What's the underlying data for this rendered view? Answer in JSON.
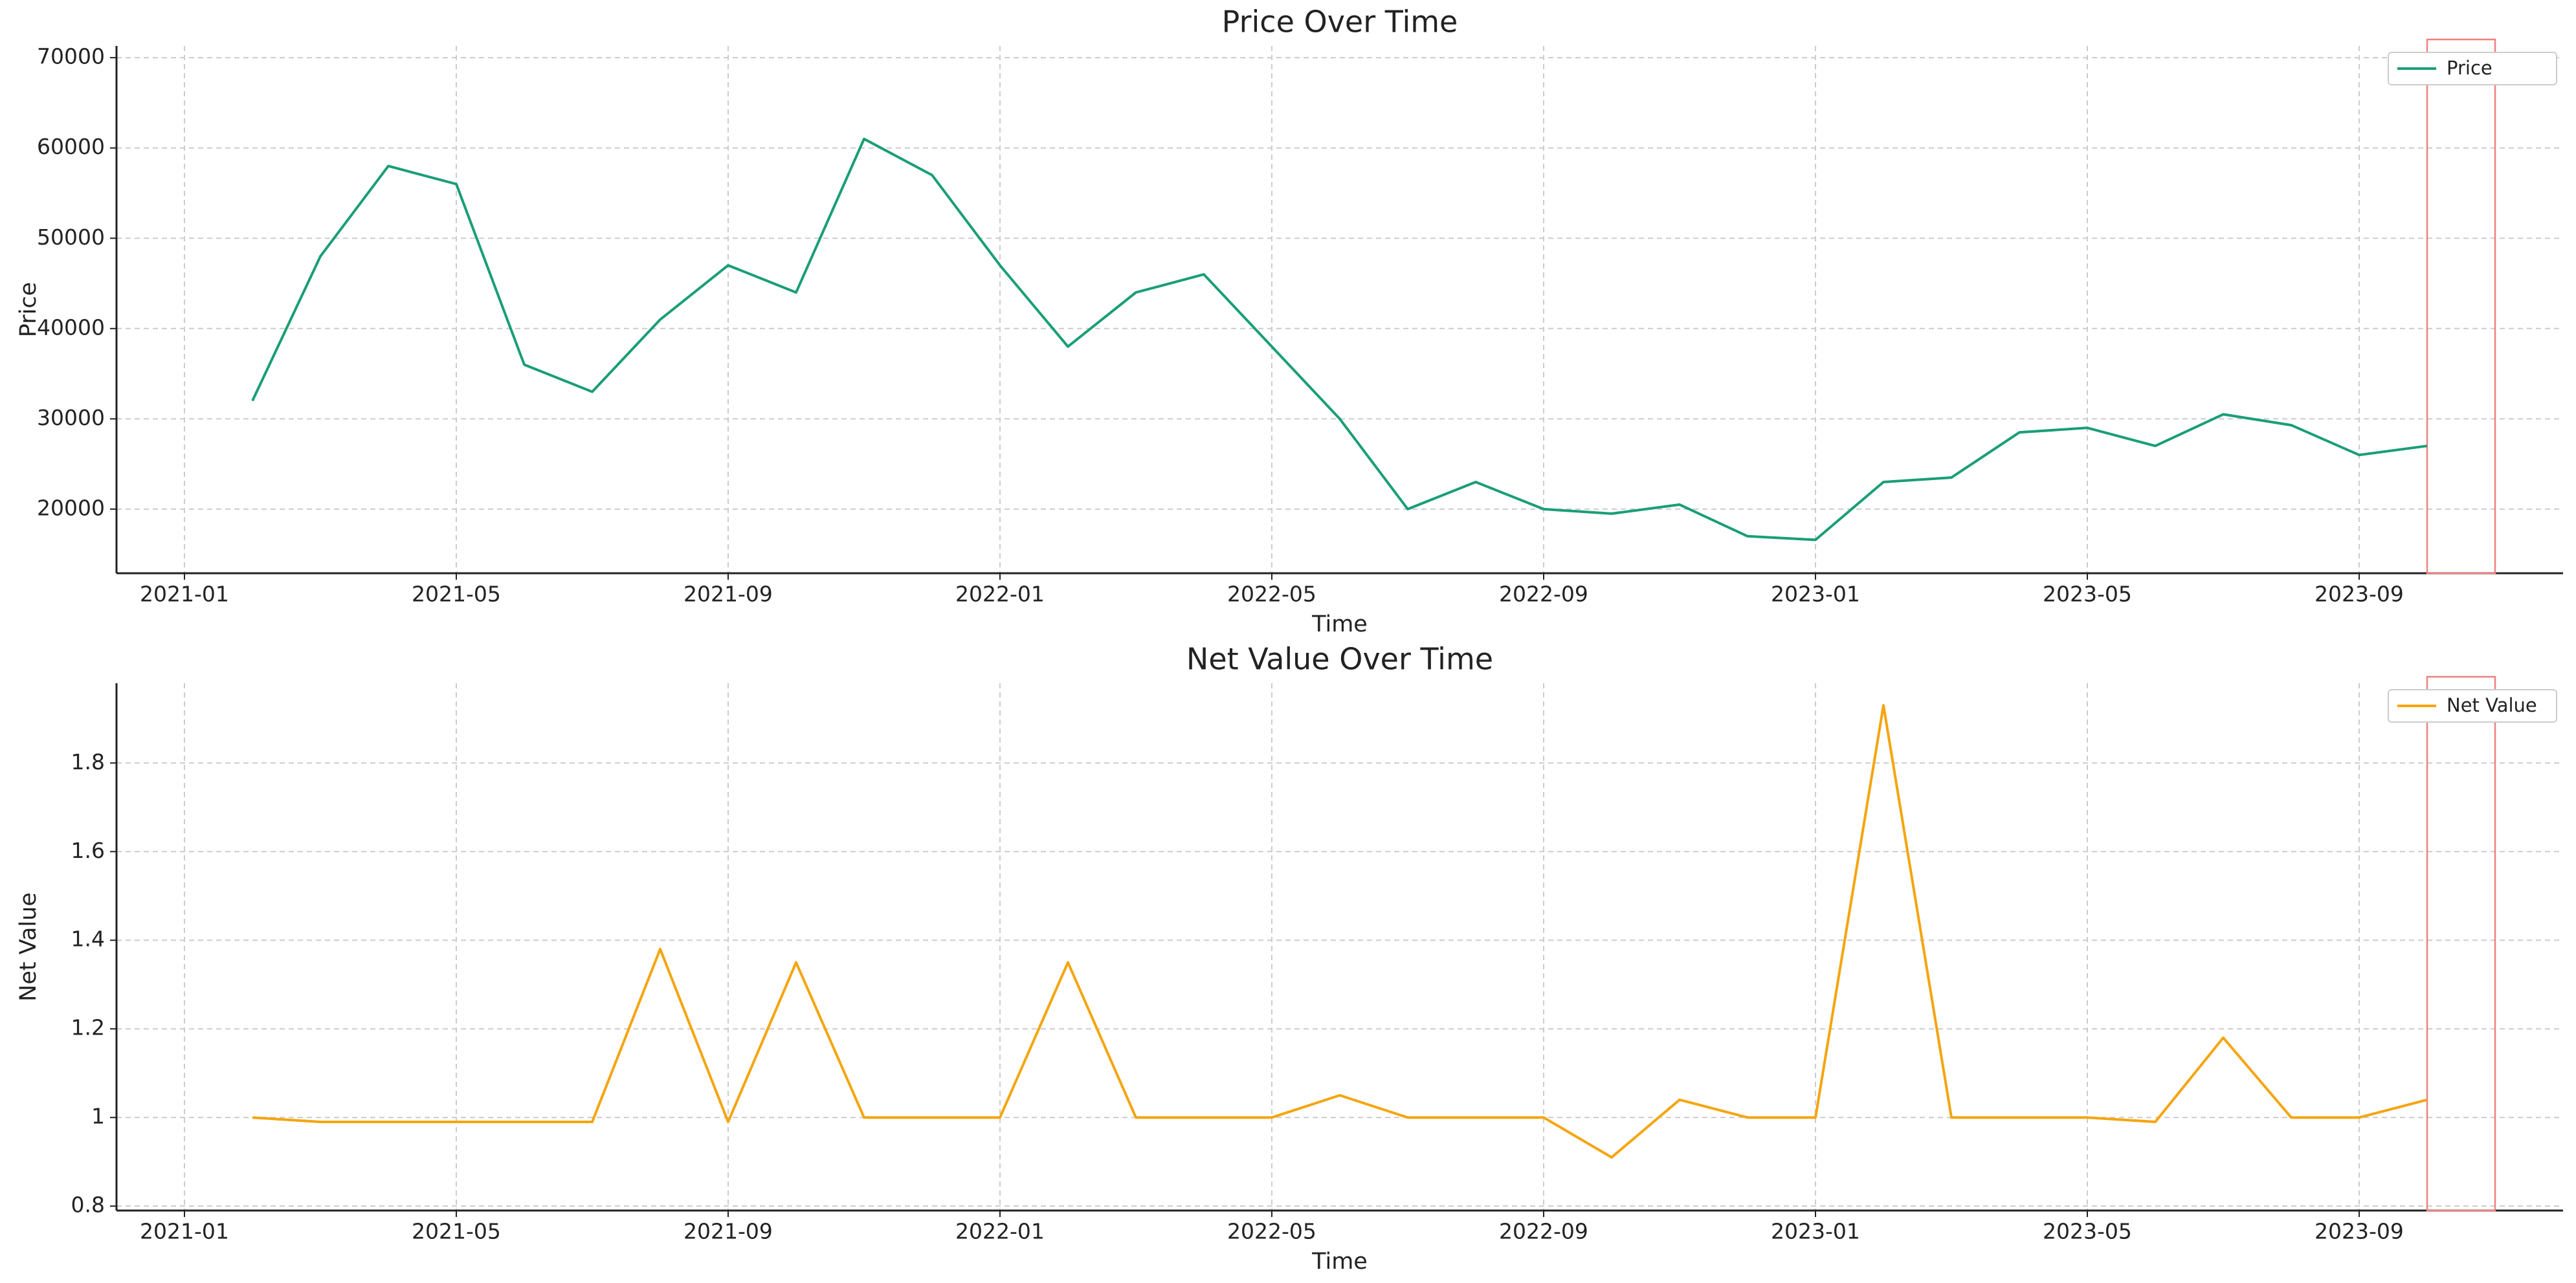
{
  "chart_data": [
    {
      "type": "line",
      "title": "Price Over Time",
      "xlabel": "Time",
      "ylabel": "Price",
      "x": [
        "2021-02",
        "2021-03",
        "2021-04",
        "2021-05",
        "2021-06",
        "2021-07",
        "2021-08",
        "2021-09",
        "2021-10",
        "2021-11",
        "2021-12",
        "2022-01",
        "2022-02",
        "2022-03",
        "2022-04",
        "2022-05",
        "2022-06",
        "2022-07",
        "2022-08",
        "2022-09",
        "2022-10",
        "2022-11",
        "2022-12",
        "2023-01",
        "2023-02",
        "2023-03",
        "2023-04",
        "2023-05",
        "2023-06",
        "2023-07",
        "2023-08",
        "2023-09",
        "2023-10"
      ],
      "series": [
        {
          "name": "Price",
          "color": "#1a9e77",
          "values": [
            32000,
            48000,
            58000,
            56000,
            36000,
            33000,
            41000,
            47000,
            44000,
            61000,
            57000,
            47000,
            38000,
            44000,
            46000,
            38000,
            30000,
            20000,
            23000,
            20000,
            19500,
            20500,
            17000,
            16600,
            23000,
            23500,
            28500,
            29000,
            27000,
            30500,
            29300,
            26000,
            27000
          ]
        }
      ],
      "xlim": [
        "2020-12",
        "2023-12"
      ],
      "xticks": [
        "2021-01",
        "2021-05",
        "2021-09",
        "2022-01",
        "2022-05",
        "2022-09",
        "2023-01",
        "2023-05",
        "2023-09"
      ],
      "ylim": [
        12900,
        71300
      ],
      "yticks": [
        20000,
        30000,
        40000,
        50000,
        60000,
        70000
      ],
      "grid": true,
      "legend": "upper right",
      "span": [
        "2023-10",
        "2023-11"
      ],
      "span_color": "#f08080"
    },
    {
      "type": "line",
      "title": "Net Value Over Time",
      "xlabel": "Time",
      "ylabel": "Net Value",
      "x": [
        "2021-02",
        "2021-03",
        "2021-04",
        "2021-05",
        "2021-06",
        "2021-07",
        "2021-08",
        "2021-09",
        "2021-10",
        "2021-11",
        "2021-12",
        "2022-01",
        "2022-02",
        "2022-03",
        "2022-04",
        "2022-05",
        "2022-06",
        "2022-07",
        "2022-08",
        "2022-09",
        "2022-10",
        "2022-11",
        "2022-12",
        "2023-01",
        "2023-02",
        "2023-03",
        "2023-04",
        "2023-05",
        "2023-06",
        "2023-07",
        "2023-08",
        "2023-09",
        "2023-10"
      ],
      "series": [
        {
          "name": "Net Value",
          "color": "#f5a50f",
          "values": [
            1.0,
            0.99,
            0.99,
            0.99,
            0.99,
            0.99,
            1.38,
            0.99,
            1.35,
            1.0,
            1.0,
            1.0,
            1.35,
            1.0,
            1.0,
            1.0,
            1.05,
            1.0,
            1.0,
            1.0,
            0.91,
            1.04,
            1.0,
            1.0,
            1.93,
            1.0,
            1.0,
            1.0,
            0.99,
            1.18,
            1.0,
            1.0,
            1.04
          ]
        }
      ],
      "xlim": [
        "2020-12",
        "2023-12"
      ],
      "xticks": [
        "2021-01",
        "2021-05",
        "2021-09",
        "2022-01",
        "2022-05",
        "2022-09",
        "2023-01",
        "2023-05",
        "2023-09"
      ],
      "ylim": [
        0.79,
        1.98
      ],
      "yticks": [
        0.8,
        1.0,
        1.2,
        1.4,
        1.6,
        1.8
      ],
      "grid": true,
      "legend": "upper right",
      "span": [
        "2023-10",
        "2023-11"
      ],
      "span_color": "#f08080"
    }
  ]
}
